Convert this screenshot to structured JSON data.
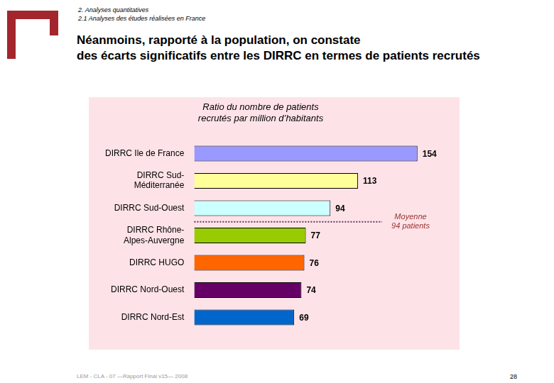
{
  "header": {
    "section": "2. Analyses quantitatives",
    "subsection": "2.1 Analyses des études réalisées en France"
  },
  "title": [
    "Néanmoins, rapporté à la population, on constate",
    "des écarts significatifs entre les DIRRC en termes de patients recrutés"
  ],
  "chart_data": {
    "type": "bar",
    "orientation": "horizontal",
    "title": [
      "Ratio du nombre de patients",
      "recrutés par million d’habitants"
    ],
    "categories": [
      "DIRRC Ile de France",
      [
        "DIRRC Sud-",
        "Méditerranée"
      ],
      "DIRRC Sud-Ouest",
      [
        "DIRRC Rhône-",
        "Alpes-Auvergne"
      ],
      "DIRRC HUGO",
      "DIRRC Nord-Ouest",
      "DIRRC Nord-Est"
    ],
    "values": [
      154,
      113,
      94,
      77,
      76,
      74,
      69
    ],
    "colors": [
      "#9999ff",
      "#ffff99",
      "#ccffff",
      "#99cc00",
      "#ff6600",
      "#660066",
      "#0066cc"
    ],
    "data_labels": true,
    "tick_labels": false,
    "grid": false,
    "annotations": [
      {
        "text": [
          "Moyenne",
          "94 patients"
        ],
        "value": 94
      }
    ]
  },
  "footer": {
    "text": "LEM - CLA - 07 —Rapport Final v15— 2008",
    "page": 28
  }
}
